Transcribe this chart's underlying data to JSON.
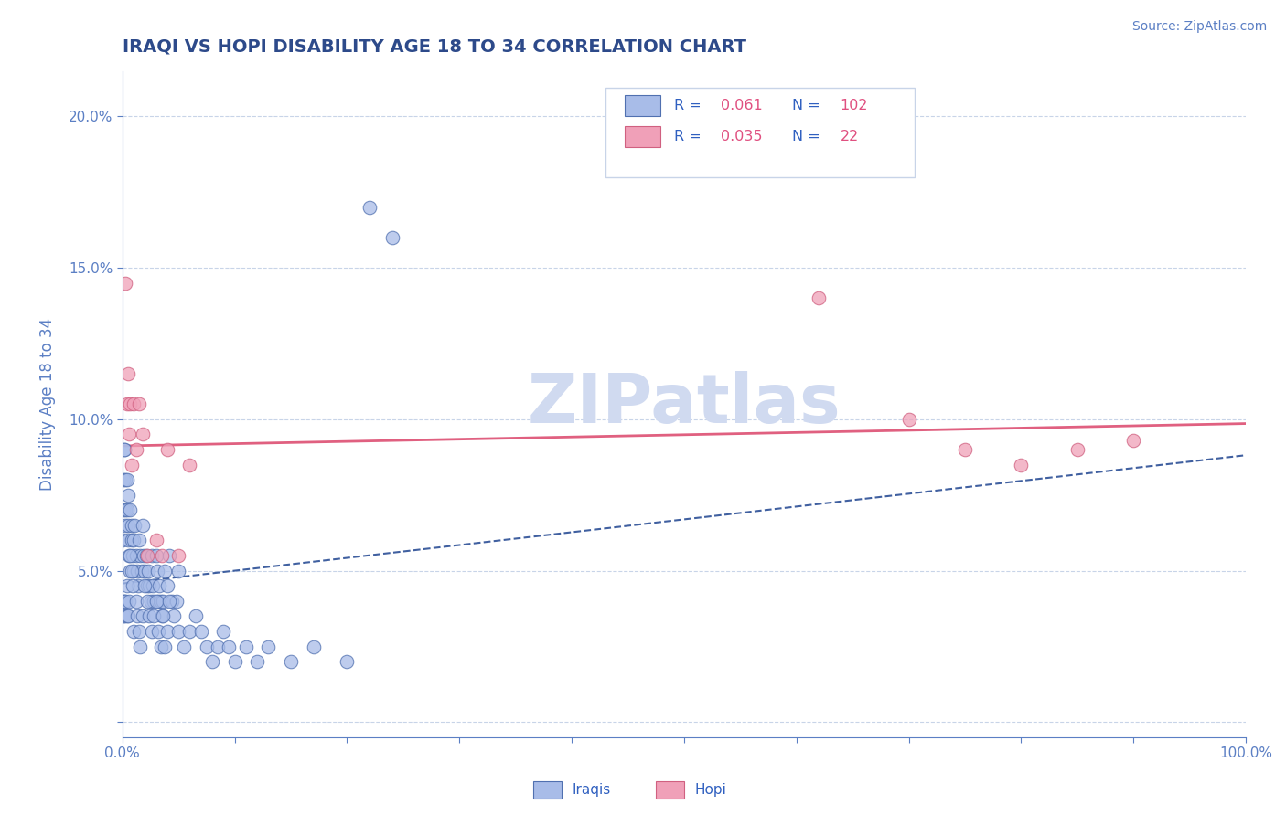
{
  "title": "IRAQI VS HOPI DISABILITY AGE 18 TO 34 CORRELATION CHART",
  "source_text": "Source: ZipAtlas.com",
  "ylabel": "Disability Age 18 to 34",
  "watermark": "ZIPatlas",
  "xlim": [
    0.0,
    1.0
  ],
  "ylim": [
    -0.005,
    0.215
  ],
  "xticks": [
    0.0,
    0.1,
    0.2,
    0.3,
    0.4,
    0.5,
    0.6,
    0.7,
    0.8,
    0.9,
    1.0
  ],
  "yticks": [
    0.0,
    0.05,
    0.1,
    0.15,
    0.2
  ],
  "ytick_labels": [
    "",
    "5.0%",
    "10.0%",
    "15.0%",
    "20.0%"
  ],
  "xtick_labels": [
    "0.0%",
    "",
    "",
    "",
    "",
    "",
    "",
    "",
    "",
    "",
    "100.0%"
  ],
  "title_color": "#2d4a8a",
  "axis_color": "#5b7fc4",
  "tick_color": "#5b7fc4",
  "grid_color": "#c8d4e8",
  "source_color": "#5b7fc4",
  "watermark_color": "#d0daf0",
  "legend_label_color": "#3060c0",
  "legend_value_color": "#e05080",
  "iraqi_dot_color": "#a8bce8",
  "hopi_dot_color": "#f0a0b8",
  "iraqi_edge_color": "#5070b0",
  "hopi_edge_color": "#d06080",
  "iraqi_line_color": "#4060a0",
  "hopi_line_color": "#e06080",
  "iraqi_R": 0.061,
  "iraqi_N": 102,
  "hopi_R": 0.035,
  "hopi_N": 22,
  "iraqi_x": [
    0.0,
    0.001,
    0.001,
    0.002,
    0.002,
    0.003,
    0.003,
    0.003,
    0.004,
    0.004,
    0.005,
    0.005,
    0.005,
    0.006,
    0.007,
    0.007,
    0.008,
    0.008,
    0.009,
    0.01,
    0.01,
    0.011,
    0.012,
    0.013,
    0.014,
    0.015,
    0.016,
    0.017,
    0.018,
    0.019,
    0.02,
    0.021,
    0.022,
    0.023,
    0.024,
    0.025,
    0.026,
    0.027,
    0.028,
    0.03,
    0.031,
    0.032,
    0.033,
    0.034,
    0.035,
    0.036,
    0.038,
    0.04,
    0.042,
    0.044,
    0.046,
    0.048,
    0.05,
    0.001,
    0.001,
    0.002,
    0.002,
    0.003,
    0.004,
    0.004,
    0.005,
    0.006,
    0.007,
    0.008,
    0.009,
    0.01,
    0.012,
    0.013,
    0.015,
    0.016,
    0.018,
    0.02,
    0.022,
    0.024,
    0.026,
    0.028,
    0.03,
    0.032,
    0.034,
    0.036,
    0.038,
    0.04,
    0.042,
    0.05,
    0.055,
    0.06,
    0.065,
    0.07,
    0.075,
    0.08,
    0.085,
    0.09,
    0.095,
    0.1,
    0.11,
    0.12,
    0.13,
    0.15,
    0.17,
    0.2,
    0.22,
    0.24
  ],
  "iraqi_y": [
    0.06,
    0.07,
    0.08,
    0.09,
    0.09,
    0.08,
    0.07,
    0.065,
    0.07,
    0.08,
    0.065,
    0.075,
    0.06,
    0.055,
    0.05,
    0.07,
    0.06,
    0.065,
    0.055,
    0.05,
    0.06,
    0.065,
    0.055,
    0.05,
    0.045,
    0.06,
    0.055,
    0.05,
    0.065,
    0.055,
    0.05,
    0.055,
    0.045,
    0.05,
    0.045,
    0.04,
    0.055,
    0.045,
    0.04,
    0.055,
    0.05,
    0.04,
    0.045,
    0.04,
    0.035,
    0.04,
    0.05,
    0.045,
    0.055,
    0.04,
    0.035,
    0.04,
    0.05,
    0.04,
    0.035,
    0.04,
    0.035,
    0.04,
    0.035,
    0.045,
    0.035,
    0.04,
    0.055,
    0.05,
    0.045,
    0.03,
    0.04,
    0.035,
    0.03,
    0.025,
    0.035,
    0.045,
    0.04,
    0.035,
    0.03,
    0.035,
    0.04,
    0.03,
    0.025,
    0.035,
    0.025,
    0.03,
    0.04,
    0.03,
    0.025,
    0.03,
    0.035,
    0.03,
    0.025,
    0.02,
    0.025,
    0.03,
    0.025,
    0.02,
    0.025,
    0.02,
    0.025,
    0.02,
    0.025,
    0.02,
    0.17,
    0.16
  ],
  "hopi_x": [
    0.003,
    0.004,
    0.005,
    0.006,
    0.007,
    0.008,
    0.01,
    0.012,
    0.015,
    0.018,
    0.022,
    0.03,
    0.035,
    0.04,
    0.05,
    0.06,
    0.62,
    0.7,
    0.75,
    0.8,
    0.85,
    0.9
  ],
  "hopi_y": [
    0.145,
    0.105,
    0.115,
    0.095,
    0.105,
    0.085,
    0.105,
    0.09,
    0.105,
    0.095,
    0.055,
    0.06,
    0.055,
    0.09,
    0.055,
    0.085,
    0.14,
    0.1,
    0.09,
    0.085,
    0.09,
    0.093
  ]
}
